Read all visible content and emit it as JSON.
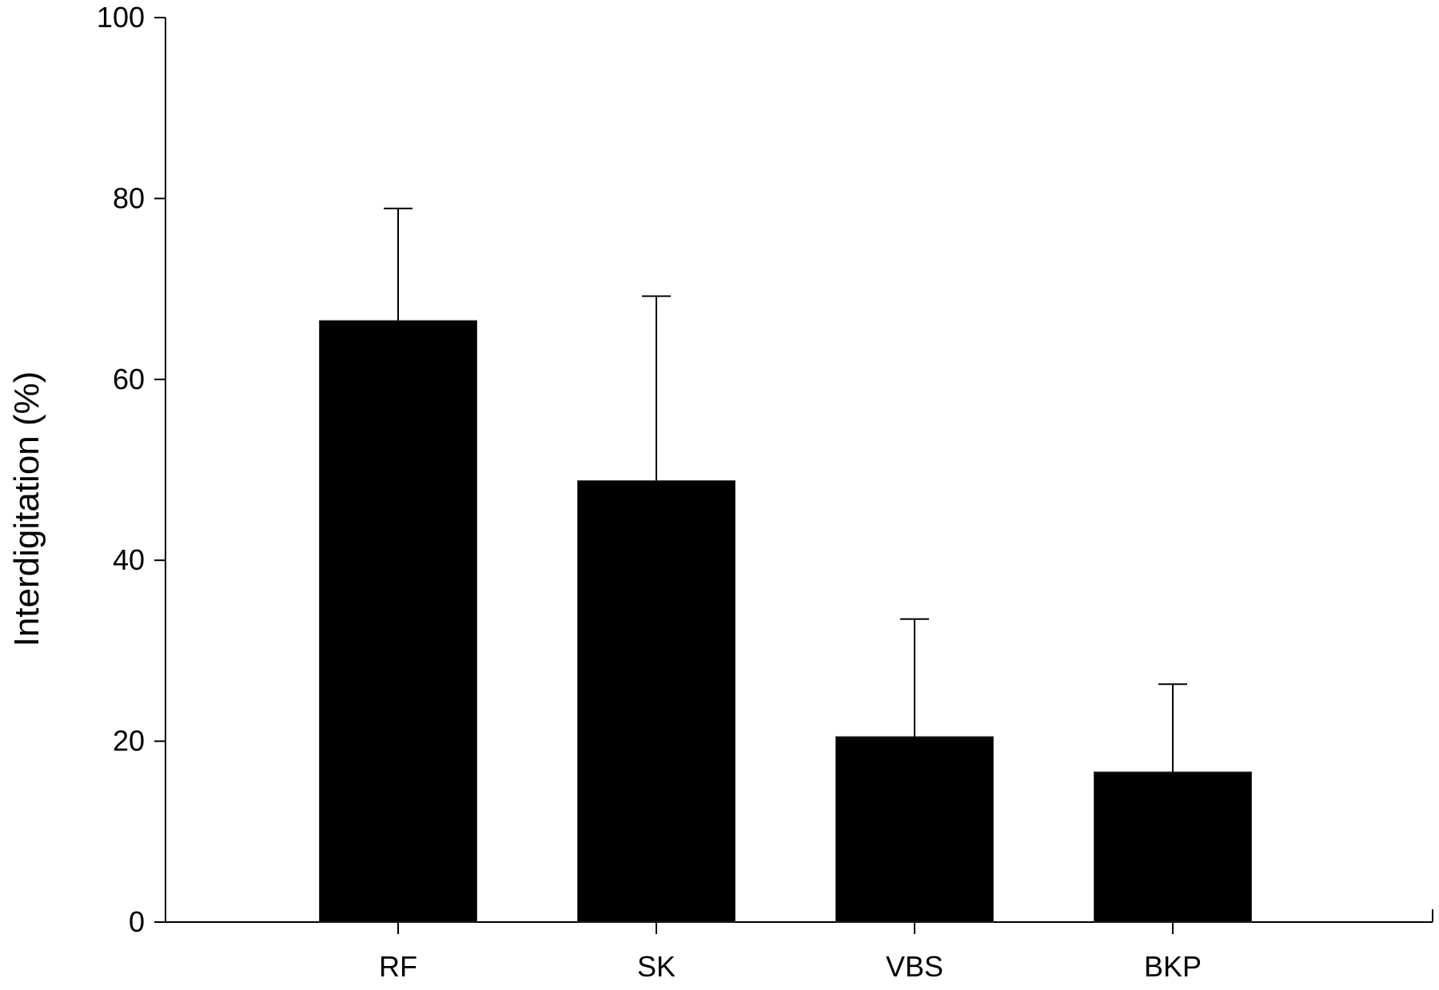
{
  "chart_data": {
    "type": "bar",
    "title": "",
    "xlabel": "",
    "ylabel": "Interdigitation (%)",
    "ylim": [
      0,
      100
    ],
    "yticks": [
      0,
      20,
      40,
      60,
      80,
      100
    ],
    "categories": [
      "RF",
      "SK",
      "VBS",
      "BKP"
    ],
    "values": [
      66.5,
      48.8,
      20.5,
      16.6
    ],
    "error_upper": [
      12.4,
      20.4,
      13.0,
      9.7
    ],
    "grid": false,
    "legend": "none",
    "bar_color": "#000000",
    "axis_color": "#000000"
  }
}
